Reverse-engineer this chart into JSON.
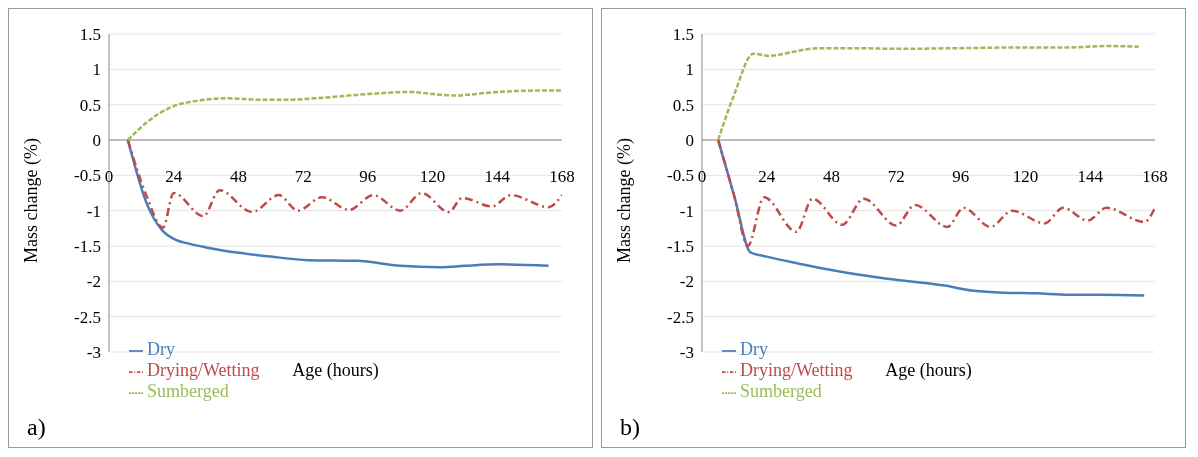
{
  "chart_data": [
    {
      "type": "line",
      "xlabel": "Age (hours)",
      "ylabel": "Mass change (%)",
      "annotations": [
        "a)"
      ],
      "xlim": [
        0,
        168
      ],
      "xticks": [
        0,
        24,
        48,
        72,
        96,
        120,
        144,
        168
      ],
      "ylim": [
        -3,
        1.5
      ],
      "yticks": [
        -3,
        -2.5,
        -2,
        -1.5,
        -1,
        -0.5,
        0,
        0.5,
        1,
        1.5
      ],
      "grid": "y",
      "legend": "bottom left",
      "marker": "none",
      "series": [
        {
          "name": "Dry",
          "color": "#4a7ebb",
          "line_style": "solid",
          "x": [
            7,
            14,
            20,
            24,
            30,
            36,
            49,
            60,
            74,
            92,
            108,
            123,
            132,
            145,
            163
          ],
          "values": [
            0,
            -0.9,
            -1.29,
            -1.4,
            -1.47,
            -1.52,
            -1.6,
            -1.65,
            -1.7,
            -1.71,
            -1.78,
            -1.8,
            -1.78,
            -1.76,
            -1.78
          ]
        },
        {
          "name": "Drying/Wetting",
          "color": "#be4b48",
          "line_style": "dashdot",
          "x": [
            7,
            14,
            20,
            24,
            35,
            41,
            53,
            63,
            70,
            79,
            89,
            98,
            108,
            116,
            126,
            131,
            142,
            149,
            163,
            168
          ],
          "values": [
            0,
            -0.8,
            -1.24,
            -0.75,
            -1.08,
            -0.71,
            -1.02,
            -0.78,
            -1.0,
            -0.81,
            -0.99,
            -0.78,
            -1.0,
            -0.75,
            -1.02,
            -0.82,
            -0.94,
            -0.78,
            -0.95,
            -0.78
          ]
        },
        {
          "name": "Sumberged",
          "color": "#9bbb59",
          "line_style": "dashed",
          "x": [
            7,
            14,
            24,
            32,
            44,
            56,
            66,
            80,
            96,
            112,
            120,
            128,
            144,
            160,
            168
          ],
          "values": [
            0,
            0.25,
            0.48,
            0.55,
            0.59,
            0.57,
            0.57,
            0.6,
            0.65,
            0.68,
            0.65,
            0.63,
            0.68,
            0.7,
            0.7
          ]
        }
      ]
    },
    {
      "type": "line",
      "xlabel": "Age (hours)",
      "ylabel": "Mass change (%)",
      "annotations": [
        "b)"
      ],
      "xlim": [
        0,
        168
      ],
      "xticks": [
        0,
        24,
        48,
        72,
        96,
        120,
        144,
        168
      ],
      "ylim": [
        -3,
        1.5
      ],
      "yticks": [
        -3,
        -2.5,
        -2,
        -1.5,
        -1,
        -0.5,
        0,
        0.5,
        1,
        1.5
      ],
      "grid": "y",
      "legend": "bottom left",
      "marker": "none",
      "series": [
        {
          "name": "Dry",
          "color": "#4a7ebb",
          "line_style": "solid",
          "x": [
            6,
            12,
            18,
            24,
            36,
            48,
            66,
            90,
            100,
            112,
            124,
            136,
            148,
            164
          ],
          "values": [
            0,
            -0.8,
            -1.59,
            -1.65,
            -1.75,
            -1.84,
            -1.95,
            -2.06,
            -2.13,
            -2.16,
            -2.17,
            -2.19,
            -2.19,
            -2.2
          ]
        },
        {
          "name": "Drying/Wetting",
          "color": "#be4b48",
          "line_style": "dashdot",
          "x": [
            6,
            12,
            17,
            23,
            35,
            41,
            52,
            60,
            72,
            79,
            91,
            97,
            107,
            115,
            127,
            134,
            143,
            150,
            164,
            168
          ],
          "values": [
            0,
            -0.8,
            -1.5,
            -0.81,
            -1.3,
            -0.83,
            -1.2,
            -0.83,
            -1.21,
            -0.92,
            -1.23,
            -0.96,
            -1.23,
            -1.0,
            -1.18,
            -0.96,
            -1.14,
            -0.96,
            -1.16,
            -0.96
          ]
        },
        {
          "name": "Sumberged",
          "color": "#9bbb59",
          "line_style": "dashed",
          "x": [
            6,
            12,
            19,
            25,
            34,
            43,
            56,
            73,
            96,
            120,
            136,
            150,
            162
          ],
          "values": [
            0,
            0.65,
            1.22,
            1.19,
            1.25,
            1.3,
            1.3,
            1.29,
            1.3,
            1.31,
            1.31,
            1.33,
            1.32
          ]
        }
      ]
    }
  ]
}
